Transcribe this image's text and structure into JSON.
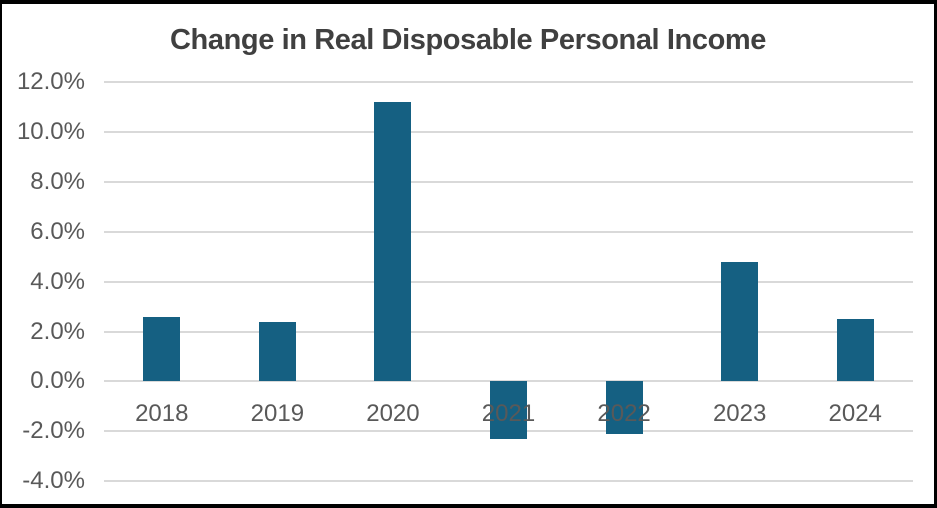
{
  "chart_data": {
    "type": "bar",
    "title": "Change in Real Disposable Personal Income",
    "categories": [
      "2018",
      "2019",
      "2020",
      "2021",
      "2022",
      "2023",
      "2024"
    ],
    "values": [
      2.6,
      2.4,
      11.2,
      -2.3,
      -2.1,
      4.8,
      2.5
    ],
    "unit": "%",
    "xlabel": "",
    "ylabel": "",
    "ylim": [
      -4,
      12
    ],
    "ytick_step": 2,
    "ytick_labels": [
      "12.0%",
      "10.0%",
      "8.0%",
      "6.0%",
      "4.0%",
      "2.0%",
      "0.0%",
      "-2.0%",
      "-4.0%"
    ],
    "grid": true,
    "legend": "none",
    "colors": {
      "bar": "#156082",
      "gridline": "#d9d9d9",
      "axis_text": "#595959",
      "title_text": "#404040",
      "plot_background": "#ffffff",
      "frame_border": "#000000"
    }
  }
}
